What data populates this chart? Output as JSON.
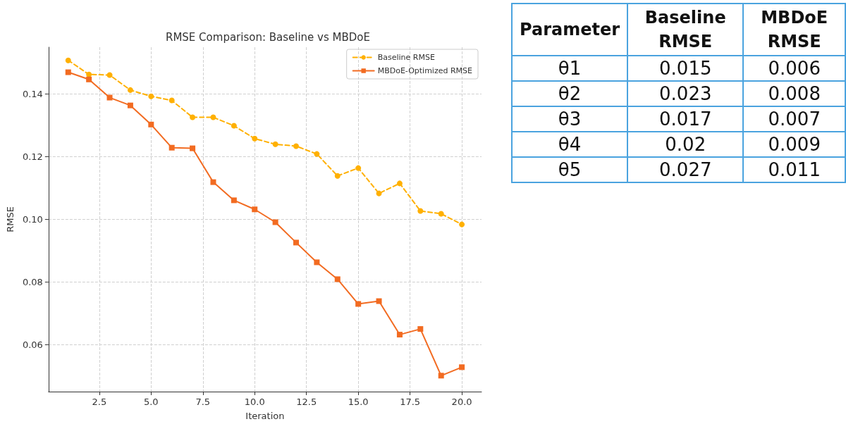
{
  "chart_data": [
    {
      "type": "line",
      "title": "RMSE Comparison: Baseline vs MBDoE",
      "xlabel": "Iteration",
      "ylabel": "RMSE",
      "x": [
        1,
        2,
        3,
        4,
        5,
        6,
        7,
        8,
        9,
        10,
        11,
        12,
        13,
        14,
        15,
        16,
        17,
        18,
        19,
        20
      ],
      "series": [
        {
          "name": "Baseline RMSE",
          "color": "#ffb000",
          "marker": "circle",
          "line_style": "dashed",
          "values": [
            0.1508,
            0.1463,
            0.1461,
            0.1413,
            0.1393,
            0.138,
            0.1326,
            0.1326,
            0.1299,
            0.1258,
            0.124,
            0.1234,
            0.1209,
            0.1139,
            0.1164,
            0.1083,
            0.1115,
            0.1027,
            0.1018,
            0.0984
          ]
        },
        {
          "name": "MBDoE-Optimized RMSE",
          "color": "#f26b21",
          "marker": "square",
          "line_style": "solid",
          "values": [
            0.147,
            0.1447,
            0.1389,
            0.1364,
            0.1303,
            0.1229,
            0.1227,
            0.1119,
            0.1061,
            0.1032,
            0.0991,
            0.0926,
            0.0863,
            0.0809,
            0.073,
            0.0739,
            0.0632,
            0.065,
            0.0501,
            0.0528
          ]
        }
      ],
      "xlim": [
        0.05,
        20.95
      ],
      "xticks": [
        2.5,
        {
          "value": 5,
          "label": "5.0"
        },
        7.5,
        {
          "value": 10,
          "label": "10.0"
        },
        12.5,
        {
          "value": 15,
          "label": "15.0"
        },
        17.5,
        {
          "value": 20,
          "label": "20.0"
        }
      ],
      "ylim": [
        0.045,
        0.155
      ],
      "yticks": [
        0.06,
        0.08,
        {
          "value": 0.1,
          "label": "0.10"
        },
        0.12,
        0.14
      ],
      "grid": true,
      "legend": "top right"
    },
    {
      "type": "other",
      "xlabel": "Parameter",
      "categories": [
        "θ1",
        "θ2",
        "θ3",
        "θ4",
        "θ5"
      ],
      "data_labels": true,
      "series": [
        {
          "name": "Baseline RMSE",
          "values": [
            0.015,
            0.023,
            0.017,
            0.02,
            0.027
          ]
        },
        {
          "name": "MBDoE RMSE",
          "values": [
            0.006,
            0.008,
            0.007,
            0.009,
            0.011
          ]
        }
      ]
    }
  ]
}
